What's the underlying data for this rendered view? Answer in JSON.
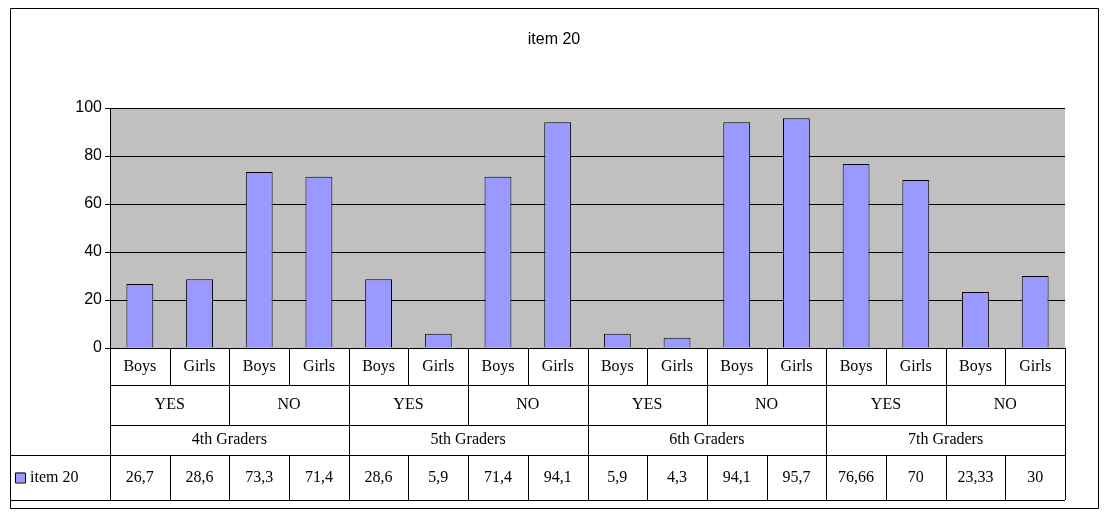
{
  "chart_data": {
    "type": "bar",
    "title": "item 20",
    "categories": [
      "Boys",
      "Girls",
      "Boys",
      "Girls",
      "Boys",
      "Girls",
      "Boys",
      "Girls",
      "Boys",
      "Girls",
      "Boys",
      "Girls",
      "Boys",
      "Girls",
      "Boys",
      "Girls"
    ],
    "annotations": [
      "YES",
      "NO",
      "YES",
      "NO",
      "YES",
      "NO",
      "YES",
      "NO",
      "4th Graders",
      "5th Graders",
      "6th Graders",
      "7th Graders"
    ],
    "series": [
      {
        "name": "item 20",
        "color": "#9999ff",
        "values": [
          26.7,
          28.6,
          73.3,
          71.4,
          28.6,
          5.9,
          71.4,
          94.1,
          5.9,
          4.3,
          94.1,
          95.7,
          76.66,
          70,
          23.33,
          30
        ],
        "value_labels": [
          "26,7",
          "28,6",
          "73,3",
          "71,4",
          "28,6",
          "5,9",
          "71,4",
          "94,1",
          "5,9",
          "4,3",
          "94,1",
          "95,7",
          "76,66",
          "70",
          "23,33",
          "30"
        ]
      }
    ],
    "ylim": [
      0,
      100
    ],
    "yticks": [
      0,
      20,
      40,
      60,
      80,
      100
    ],
    "grid": "y",
    "legend": "bottom"
  }
}
